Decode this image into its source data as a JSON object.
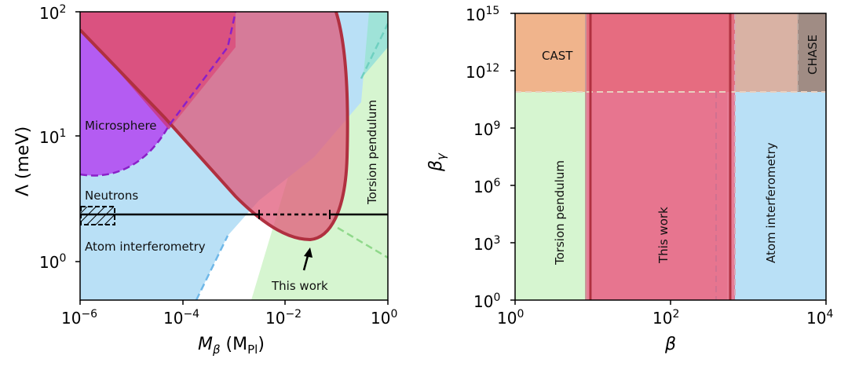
{
  "chart_data": [
    {
      "type": "area",
      "xlabel": "M_β (M_Pl)",
      "ylabel": "Λ (meV)",
      "x_scale": "log",
      "y_scale": "log",
      "xlim": [
        1e-06,
        1
      ],
      "ylim": [
        0.5,
        100
      ],
      "x_ticks": [
        "10^-6",
        "10^-4",
        "10^-2",
        "10^0"
      ],
      "y_ticks": [
        "10^0",
        "10^1",
        "10^2"
      ],
      "regions": [
        {
          "name": "Microsphere",
          "color": "#b45cf2"
        },
        {
          "name": "Neutrons",
          "color": "#b9e0f6"
        },
        {
          "name": "Atom interferometry",
          "color": "#b9e0f6"
        },
        {
          "name": "Torsion pendulum",
          "color": "#d6f5d0"
        },
        {
          "name": "This work",
          "color": "#e05a7a"
        }
      ],
      "lambda_line_meV": 2.4,
      "this_work_minimum": {
        "M": 0.03,
        "Lambda_meV": 1.5
      },
      "annotation": "This work"
    },
    {
      "type": "area",
      "xlabel": "β",
      "ylabel": "β_γ",
      "x_scale": "log",
      "y_scale": "log",
      "xlim": [
        1,
        10000
      ],
      "ylim": [
        1,
        1000000000000000.0
      ],
      "x_ticks": [
        "10^0",
        "10^2",
        "10^4"
      ],
      "y_ticks": [
        "10^0",
        "10^3",
        "10^6",
        "10^9",
        "10^12",
        "10^15"
      ],
      "regions": [
        {
          "name": "CAST",
          "color": "#f0b48c",
          "beta_gamma_min": 120000000000.0
        },
        {
          "name": "CHASE",
          "color": "#a08c84",
          "beta_min": 4200,
          "beta_gamma_min": 150000000000.0
        },
        {
          "name": "Torsion pendulum",
          "color": "#d6f5d0",
          "beta_max": 7.5
        },
        {
          "name": "This work",
          "color": "#e05a7a",
          "beta_range": [
            9,
            600
          ]
        },
        {
          "name": "Atom interferometry",
          "color": "#b9e0f6",
          "beta_min": 600
        }
      ]
    }
  ],
  "labels": {
    "microsphere": "Microsphere",
    "neutrons": "Neutrons",
    "atom_interferometry": "Atom interferometry",
    "torsion_pendulum": "Torsion pendulum",
    "this_work": "This work",
    "cast": "CAST",
    "chase": "CHASE"
  }
}
